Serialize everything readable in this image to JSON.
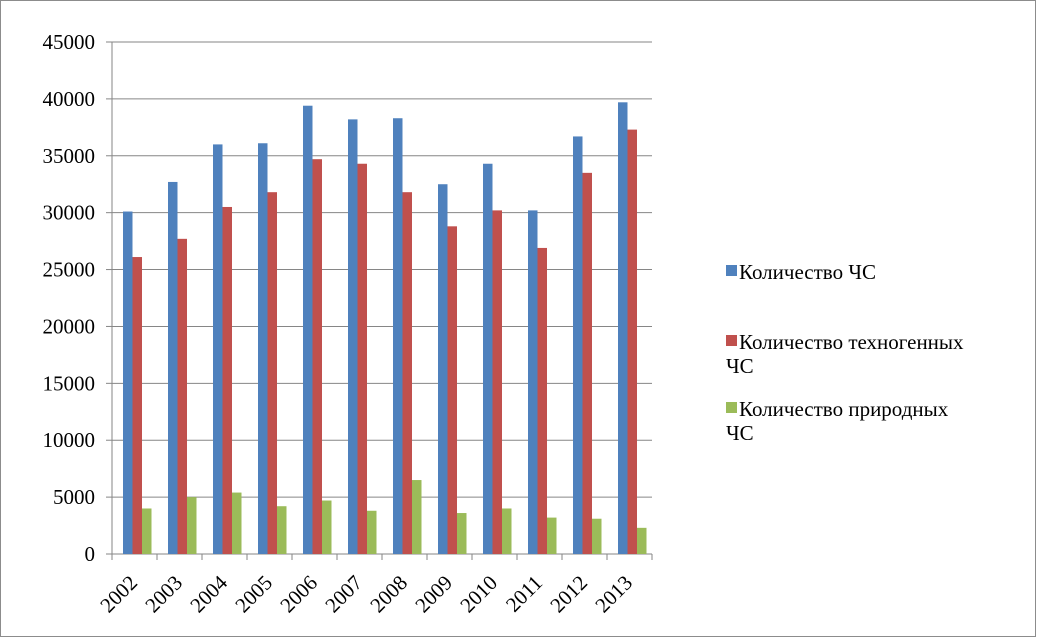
{
  "chart_data": {
    "type": "bar",
    "title": "",
    "xlabel": "",
    "ylabel": "",
    "categories": [
      "2002",
      "2003",
      "2004",
      "2005",
      "2006",
      "2007",
      "2008",
      "2009",
      "2010",
      "2011",
      "2012",
      "2013"
    ],
    "series": [
      {
        "name": "Количество ЧС",
        "color": "#4f81bd",
        "values": [
          30100,
          32700,
          36000,
          36100,
          39400,
          38200,
          38300,
          32500,
          34300,
          30200,
          36700,
          39700
        ]
      },
      {
        "name": "Количество техногенных ЧС",
        "color": "#c0504d",
        "values": [
          26100,
          27700,
          30500,
          31800,
          34700,
          34300,
          31800,
          28800,
          30200,
          26900,
          33500,
          37300
        ]
      },
      {
        "name": "Количество природных ЧС",
        "color": "#9bbb59",
        "values": [
          4000,
          5000,
          5400,
          4200,
          4700,
          3800,
          6500,
          3600,
          4000,
          3200,
          3100,
          2300
        ]
      }
    ],
    "ylim": [
      0,
      45000
    ],
    "y_ticks": [
      0,
      5000,
      10000,
      15000,
      20000,
      25000,
      30000,
      35000,
      40000,
      45000
    ],
    "grid": true,
    "legend_position": "right"
  }
}
